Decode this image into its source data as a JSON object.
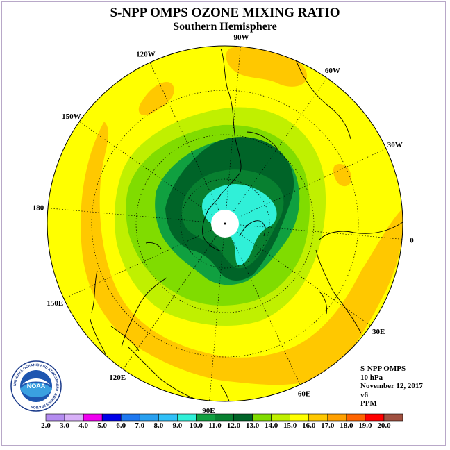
{
  "title": "S-NPP OMPS OZONE MIXING RATIO",
  "subtitle": "Southern Hemisphere",
  "longitude_labels": [
    {
      "text": "90W",
      "lon": -90
    },
    {
      "text": "60W",
      "lon": -60
    },
    {
      "text": "30W",
      "lon": -30
    },
    {
      "text": "0",
      "lon": 0
    },
    {
      "text": "30E",
      "lon": 30
    },
    {
      "text": "60E",
      "lon": 60
    },
    {
      "text": "90E",
      "lon": 90
    },
    {
      "text": "120E",
      "lon": 120
    },
    {
      "text": "150E",
      "lon": 150
    },
    {
      "text": "180",
      "lon": 180
    },
    {
      "text": "150W",
      "lon": -150
    },
    {
      "text": "120W",
      "lon": -120
    }
  ],
  "info": {
    "instrument": "S-NPP OMPS",
    "level": "10 hPa",
    "date": "November 12, 2017",
    "version": "v6",
    "units": "PPM"
  },
  "logo": {
    "text": "NOAA",
    "ring_text": "NATIONAL OCEANIC AND ATMOSPHERIC ADMINISTRATION"
  },
  "colorbar": {
    "labels": [
      "2.0",
      "3.0",
      "4.0",
      "5.0",
      "6.0",
      "7.0",
      "8.0",
      "9.0",
      "10.0",
      "11.0",
      "12.0",
      "13.0",
      "14.0",
      "15.0",
      "16.0",
      "17.0",
      "18.0",
      "19.0",
      "20.0"
    ],
    "colors": [
      "#b48cf0",
      "#d8b0f8",
      "#f000f0",
      "#0000e8",
      "#1e78f0",
      "#28a0f0",
      "#30c0f8",
      "#30f0d8",
      "#10a040",
      "#088030",
      "#006428",
      "#80dc00",
      "#c0f000",
      "#ffff00",
      "#ffc800",
      "#ffa000",
      "#ff6400",
      "#ff0000",
      "#a05040"
    ]
  },
  "map_colors": {
    "background_yellow": "#ffff00",
    "orange": "#ffc800",
    "light_green": "#c0f000",
    "mid_green": "#80dc00",
    "green": "#10a040",
    "dark_green": "#006428",
    "cyan": "#30f0d8",
    "pole": "#ffffff",
    "grid": "#000000",
    "coast": "#000000"
  }
}
